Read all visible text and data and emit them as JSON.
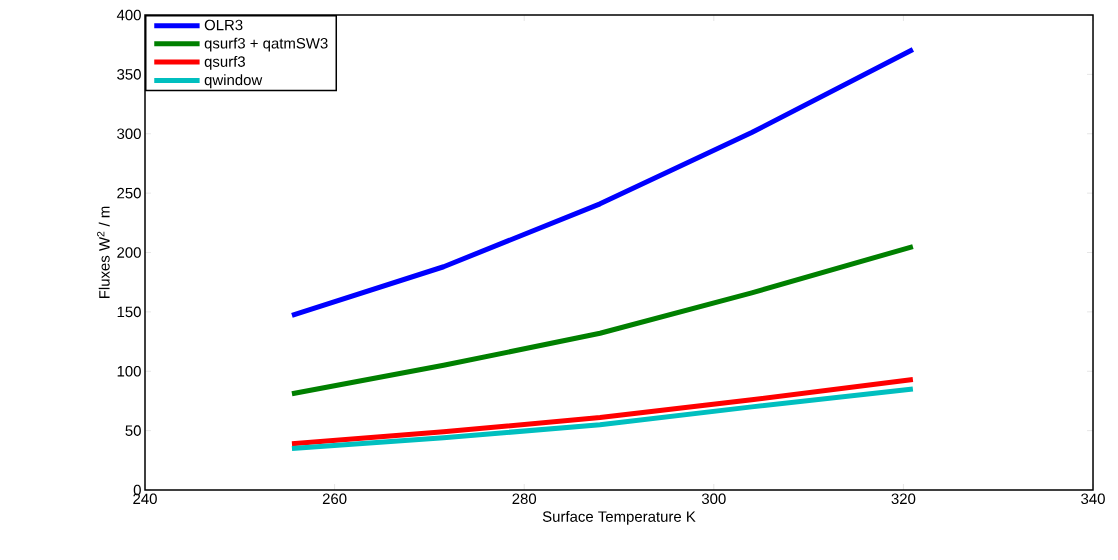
{
  "chart_data": {
    "type": "line",
    "xlabel": "Surface Temperature K",
    "ylabel": "Fluxes W$^{2}$ / m",
    "x": [
      255.5,
      271.5,
      288,
      304,
      321
    ],
    "xlim": [
      240,
      340
    ],
    "xticks": [
      240,
      260,
      280,
      300,
      320,
      340
    ],
    "ylim": [
      0,
      400
    ],
    "yticks": [
      0,
      50,
      100,
      150,
      200,
      250,
      300,
      350,
      400
    ],
    "legend": "top left",
    "grid": false,
    "marker": "none",
    "line_style": "solid",
    "series": [
      {
        "name": "OLR3",
        "color": "#0000ff",
        "values": [
          147,
          188,
          241,
          301,
          371
        ]
      },
      {
        "name": "qsurf3 + qatmSW3",
        "color": "#008000",
        "values": [
          81,
          105,
          132,
          166,
          205
        ]
      },
      {
        "name": "qsurf3",
        "color": "#ff0000",
        "values": [
          39,
          49,
          61,
          76,
          93
        ]
      },
      {
        "name": "qwindow",
        "color": "#00bfbf",
        "values": [
          35,
          44,
          55,
          70,
          85
        ]
      }
    ]
  }
}
